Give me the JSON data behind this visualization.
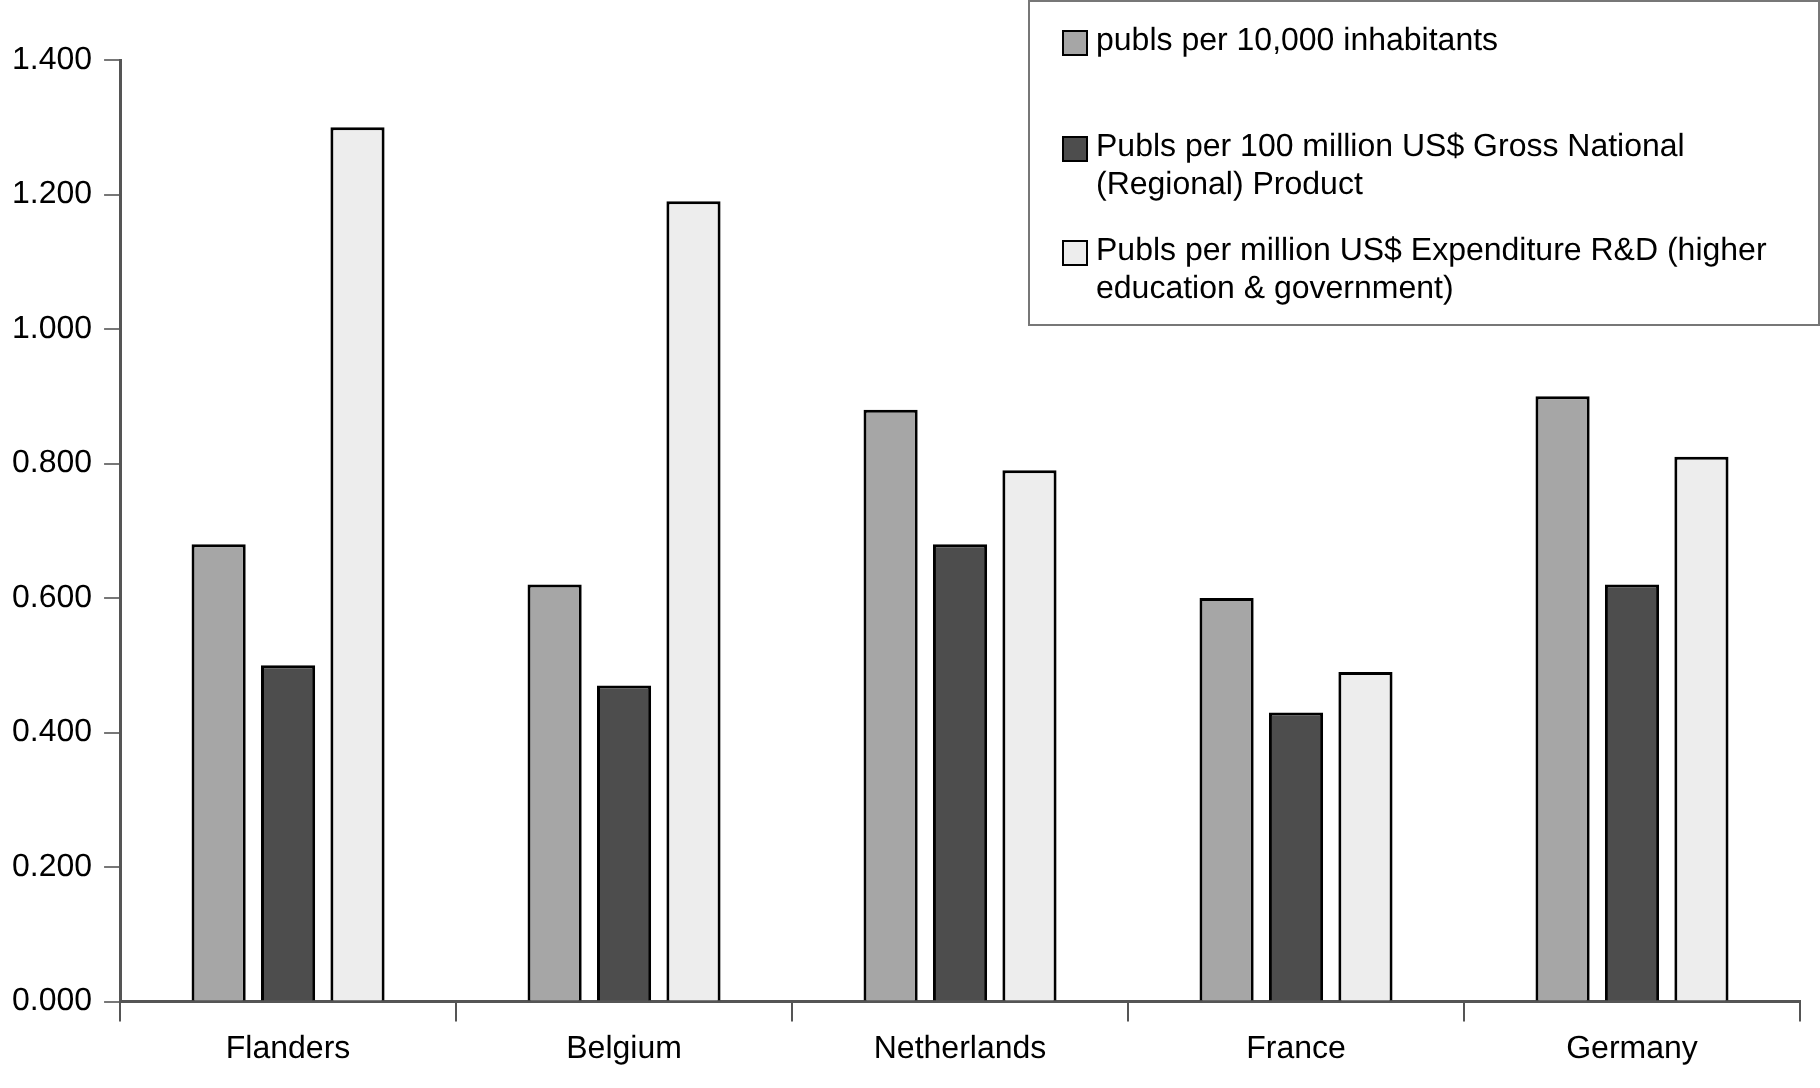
{
  "chart_data": {
    "type": "bar",
    "categories": [
      "Flanders",
      "Belgium",
      "Netherlands",
      "France",
      "Germany"
    ],
    "series": [
      {
        "name": "publs per 10,000 inhabitants",
        "color": "#a6a6a6",
        "values": [
          0.68,
          0.62,
          0.88,
          0.6,
          0.9
        ]
      },
      {
        "name": "Publs per 100 million US$ Gross National (Regional) Product",
        "color": "#4d4d4d",
        "values": [
          0.5,
          0.47,
          0.68,
          0.43,
          0.62
        ]
      },
      {
        "name": "Publs per million US$ Expenditure R&D (higher education & government)",
        "color": "#ededed",
        "values": [
          1.3,
          1.19,
          0.79,
          0.49,
          0.81
        ]
      }
    ],
    "ylim": [
      0,
      1.4
    ],
    "yticks": [
      {
        "value": 0,
        "label": "0.000"
      },
      {
        "value": 0.2,
        "label": "0.200"
      },
      {
        "value": 0.4,
        "label": "0.400"
      },
      {
        "value": 0.6,
        "label": "0.600"
      },
      {
        "value": 0.8,
        "label": "0.800"
      },
      {
        "value": 1.0,
        "label": "1.000"
      },
      {
        "value": 1.2,
        "label": "1.200"
      },
      {
        "value": 1.4,
        "label": "1.400"
      }
    ],
    "grid": false,
    "legend": "top right"
  }
}
